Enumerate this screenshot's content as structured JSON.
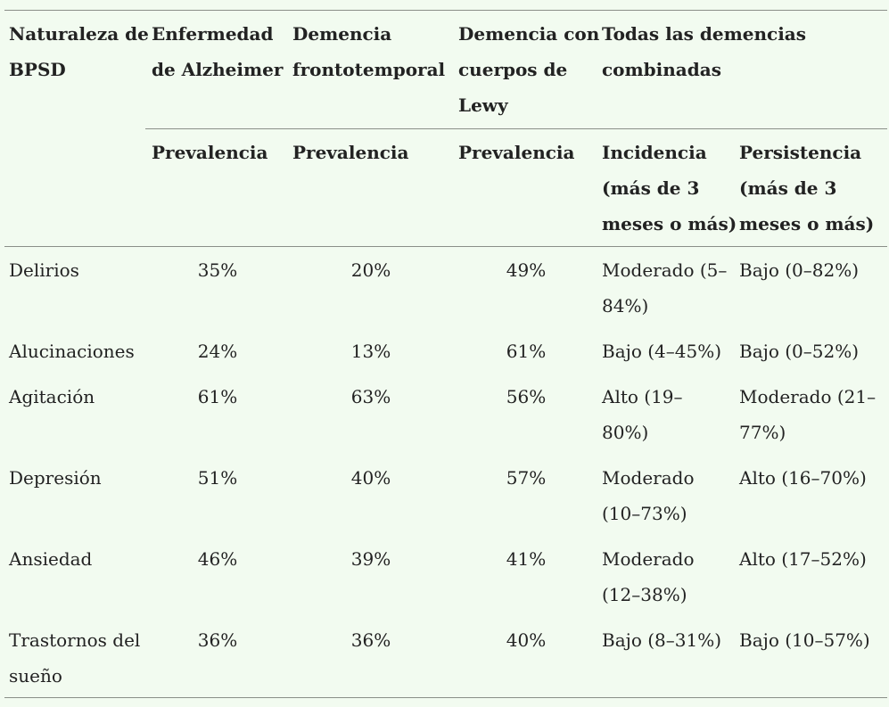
{
  "header": {
    "col1": [
      "Naturaleza de",
      "BPSD"
    ],
    "col2": [
      "Enfermedad",
      "de Alzheimer"
    ],
    "col3": [
      "Demencia",
      "frontotemporal"
    ],
    "col4": [
      "Demencia con",
      "cuerpos de",
      "Lewy"
    ],
    "col5": [
      "Todas las demencias",
      "combinadas"
    ]
  },
  "subheader": {
    "col2": [
      "Prevalencia"
    ],
    "col3": [
      "Prevalencia"
    ],
    "col4": [
      "Prevalencia"
    ],
    "col5": [
      "Incidencia",
      "(más de 3",
      "meses o más)"
    ],
    "col6": [
      "Persistencia",
      "(más de 3",
      "meses o más)"
    ]
  },
  "rows": [
    {
      "nature": [
        "Delirios"
      ],
      "ad": "35%",
      "ftd": "20%",
      "dlb": "49%",
      "incidence": [
        "Moderado (5–",
        "84%)"
      ],
      "persistence": [
        "Bajo (0–82%)"
      ]
    },
    {
      "nature": [
        "Alucinaciones"
      ],
      "ad": "24%",
      "ftd": "13%",
      "dlb": "61%",
      "incidence": [
        "Bajo (4–45%)"
      ],
      "persistence": [
        "Bajo (0–52%)"
      ]
    },
    {
      "nature": [
        "Agitación"
      ],
      "ad": "61%",
      "ftd": "63%",
      "dlb": "56%",
      "incidence": [
        "Alto (19–",
        "80%)"
      ],
      "persistence": [
        "Moderado (21–",
        "77%)"
      ]
    },
    {
      "nature": [
        "Depresión"
      ],
      "ad": "51%",
      "ftd": "40%",
      "dlb": "57%",
      "incidence": [
        "Moderado",
        "(10–73%)"
      ],
      "persistence": [
        "Alto (16–70%)"
      ]
    },
    {
      "nature": [
        "Ansiedad"
      ],
      "ad": "46%",
      "ftd": "39%",
      "dlb": "41%",
      "incidence": [
        "Moderado",
        "(12–38%)"
      ],
      "persistence": [
        "Alto (17–52%)"
      ]
    },
    {
      "nature": [
        "Trastornos del",
        "sueño"
      ],
      "ad": "36%",
      "ftd": "36%",
      "dlb": "40%",
      "incidence": [
        "Bajo (8–31%)"
      ],
      "persistence": [
        "Bajo (10–57%)"
      ]
    }
  ]
}
